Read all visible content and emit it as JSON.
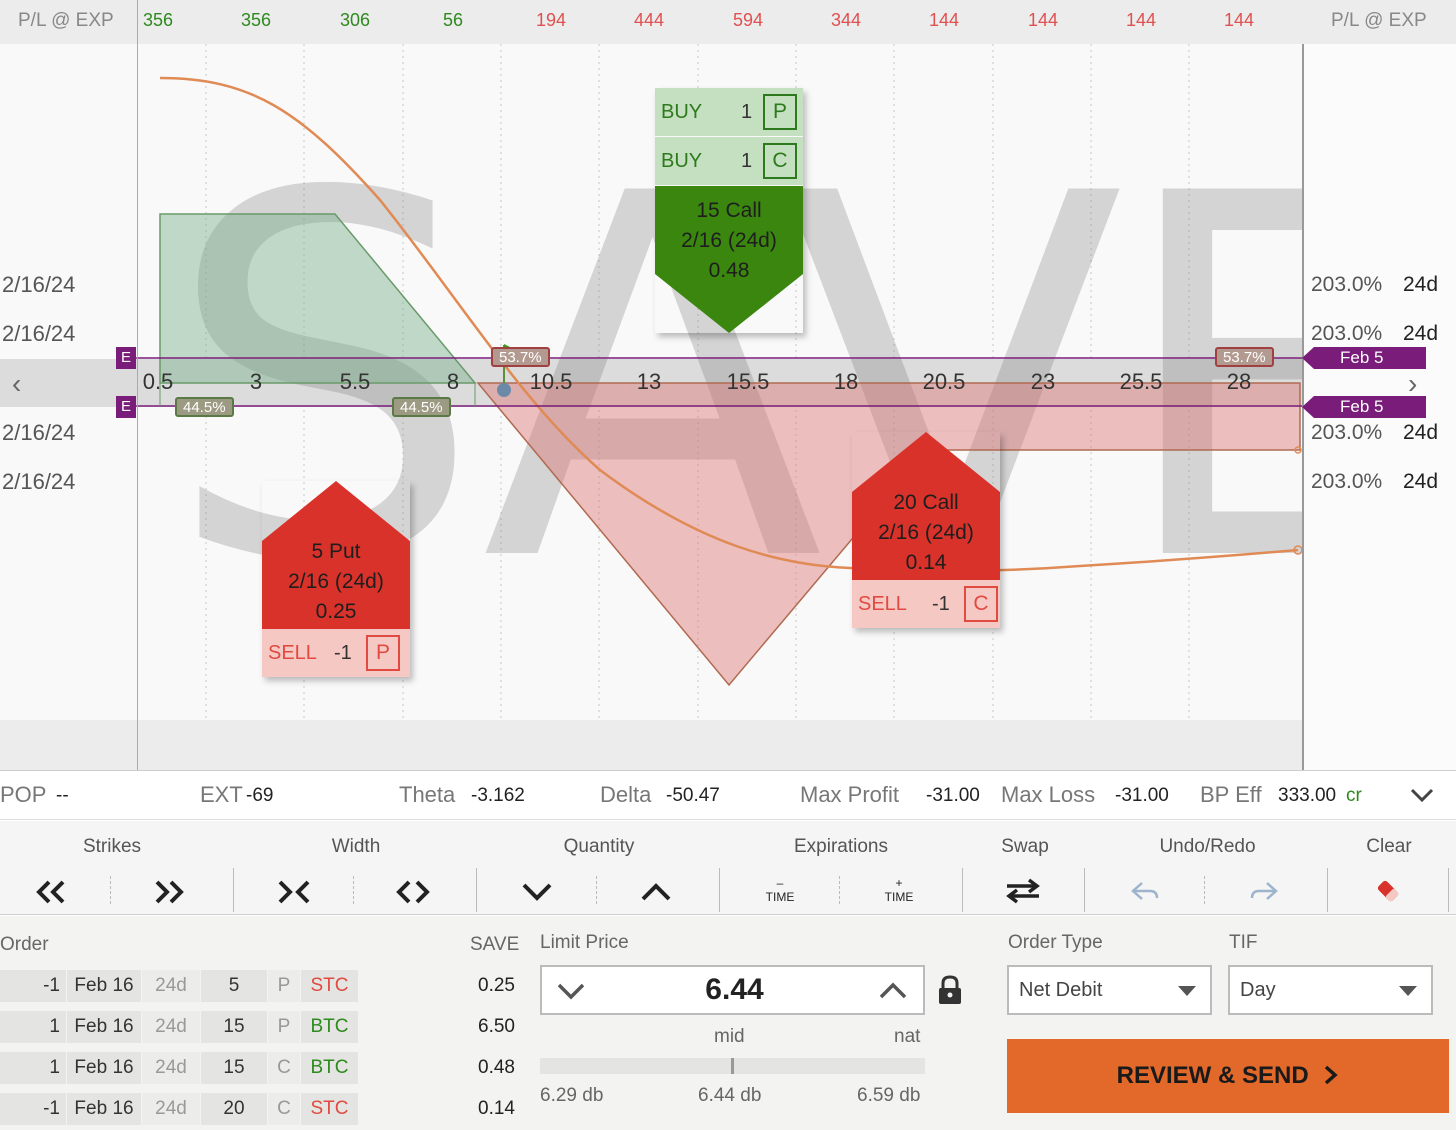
{
  "top": {
    "label_left": "P/L @ EXP",
    "label_right": "P/L @ EXP",
    "pl_values": [
      "356",
      "356",
      "306",
      "56",
      "194",
      "444",
      "594",
      "344",
      "144",
      "144",
      "144",
      "144"
    ],
    "pl_signs": [
      "pos",
      "pos",
      "pos",
      "pos",
      "neg",
      "neg",
      "neg",
      "neg",
      "neg",
      "neg",
      "neg",
      "neg"
    ]
  },
  "chart": {
    "watermark": "SAVE",
    "x_ticks": [
      "0.5",
      "3",
      "5.5",
      "8",
      "10.5",
      "13",
      "15.5",
      "18",
      "20.5",
      "23",
      "25.5",
      "28"
    ],
    "left_dates": [
      "2/16/24",
      "2/16/24",
      "2/16/24",
      "2/16/24"
    ],
    "right_iv": [
      "203.0%",
      "203.0%",
      "203.0%",
      "203.0%"
    ],
    "right_dte": [
      "24d",
      "24d",
      "24d",
      "24d"
    ],
    "expiry_marker": "E",
    "expiry_flags": [
      "Feb 5",
      "Feb 5"
    ],
    "pct_chips_top": [
      "53.7%",
      "53.7%"
    ],
    "pct_chips_bottom": [
      "44.5%",
      "44.5%"
    ],
    "nav_left": "‹",
    "nav_right": "›"
  },
  "cards": {
    "put_sell": {
      "title": "5 Put",
      "exp": "2/16 (24d)",
      "price": "0.25",
      "action": "SELL",
      "qty": "-1",
      "type": "P"
    },
    "call_buy": {
      "title": "15 Call",
      "exp": "2/16 (24d)",
      "price": "0.48",
      "rows": [
        {
          "action": "BUY",
          "qty": "1",
          "type": "P"
        },
        {
          "action": "BUY",
          "qty": "1",
          "type": "C"
        }
      ]
    },
    "call_sell": {
      "title": "20 Call",
      "exp": "2/16 (24d)",
      "price": "0.14",
      "action": "SELL",
      "qty": "-1",
      "type": "C"
    }
  },
  "metrics": {
    "pop_label": "POP",
    "pop_value": "--",
    "ext_label": "EXT",
    "ext_value": "-69",
    "theta_label": "Theta",
    "theta_value": "-3.162",
    "delta_label": "Delta",
    "delta_value": "-50.47",
    "maxprofit_label": "Max Profit",
    "maxprofit_value": "-31.00",
    "maxloss_label": "Max Loss",
    "maxloss_value": "-31.00",
    "bpeff_label": "BP Eff",
    "bpeff_value": "333.00",
    "bpeff_suffix": "cr"
  },
  "toolbar": {
    "strikes": "Strikes",
    "width": "Width",
    "quantity": "Quantity",
    "expirations": "Expirations",
    "swap": "Swap",
    "undo_redo": "Undo/Redo",
    "clear": "Clear",
    "time_label": "TIME",
    "minus": "–",
    "plus": "+"
  },
  "order": {
    "header": "Order",
    "price_header": "SAVE",
    "rows": [
      {
        "qty": "-1",
        "exp": "Feb 16",
        "dte": "24d",
        "strike": "5",
        "type": "P",
        "action": "STC",
        "price": "0.25"
      },
      {
        "qty": "1",
        "exp": "Feb 16",
        "dte": "24d",
        "strike": "15",
        "type": "P",
        "action": "BTC",
        "price": "6.50"
      },
      {
        "qty": "1",
        "exp": "Feb 16",
        "dte": "24d",
        "strike": "15",
        "type": "C",
        "action": "BTC",
        "price": "0.48"
      },
      {
        "qty": "-1",
        "exp": "Feb 16",
        "dte": "24d",
        "strike": "20",
        "type": "C",
        "action": "STC",
        "price": "0.14"
      }
    ]
  },
  "limit": {
    "label": "Limit Price",
    "value": "6.44",
    "mid_label": "mid",
    "nat_label": "nat",
    "slider_low": "6.29 db",
    "slider_mid": "6.44 db",
    "slider_high": "6.59 db"
  },
  "order_type": {
    "label": "Order Type",
    "value": "Net Debit"
  },
  "tif": {
    "label": "TIF",
    "value": "Day"
  },
  "review_button": "REVIEW & SEND"
}
